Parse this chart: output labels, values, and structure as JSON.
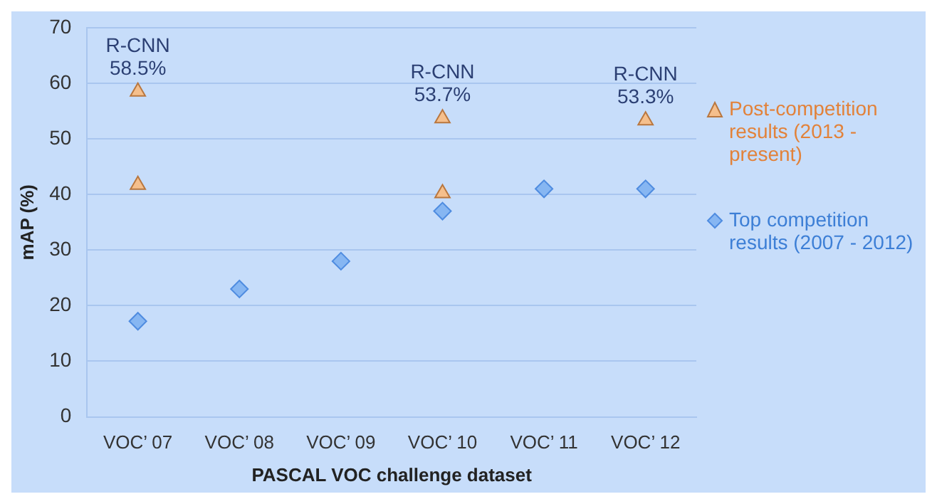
{
  "chart_data": {
    "type": "scatter",
    "xlabel": "PASCAL VOC challenge dataset",
    "ylabel": "mAP (%)",
    "categories": [
      "VOC’ 07",
      "VOC’ 08",
      "VOC’ 09",
      "VOC’ 10",
      "VOC’ 11",
      "VOC’ 12"
    ],
    "series": [
      {
        "name": "Post-competition results (2013 - present)",
        "color": "#f5bf8c",
        "marker": "triangle",
        "x": [
          "VOC’ 07",
          "VOC’ 07",
          "VOC’ 10",
          "VOC’ 10",
          "VOC’ 12"
        ],
        "values": [
          58.5,
          41.7,
          53.7,
          40.2,
          53.3
        ]
      },
      {
        "name": "Top competition results (2007 - 2012)",
        "color": "#86b6f2",
        "marker": "diamond",
        "x": [
          "VOC’ 07",
          "VOC’ 08",
          "VOC’ 09",
          "VOC’ 10",
          "VOC’ 11",
          "VOC’ 12"
        ],
        "values": [
          17.2,
          23,
          28,
          37,
          41,
          41
        ]
      }
    ],
    "ylim": [
      0,
      70
    ],
    "yticks": [
      0,
      10,
      20,
      30,
      40,
      50,
      60,
      70
    ],
    "grid": "y",
    "legend": "right",
    "annotations": [
      {
        "text": "R-CNN\n58.5%",
        "x": "VOC’ 07",
        "y": 58.5
      },
      {
        "text": "R-CNN\n53.7%",
        "x": "VOC’ 10",
        "y": 53.7
      },
      {
        "text": "R-CNN\n53.3%",
        "x": "VOC’ 12",
        "y": 53.3
      }
    ]
  }
}
